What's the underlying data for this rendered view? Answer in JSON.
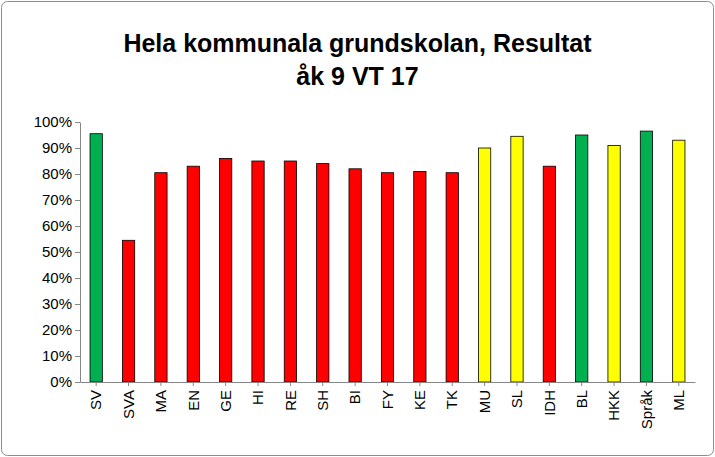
{
  "chart_data": {
    "type": "bar",
    "title": "Hela kommunala grundskolan, Resultat\nåk 9 VT 17",
    "categories": [
      "SV",
      "SVA",
      "MA",
      "EN",
      "GE",
      "HI",
      "RE",
      "SH",
      "BI",
      "FY",
      "KE",
      "TK",
      "MU",
      "SL",
      "IDH",
      "BL",
      "HKK",
      "Språk",
      "ML"
    ],
    "values": [
      95.5,
      54.5,
      80.5,
      83,
      86,
      85,
      85,
      84,
      82,
      80.5,
      81,
      80.5,
      90,
      94.5,
      83,
      95,
      91,
      96.5,
      93
    ],
    "colors": [
      "#00b050",
      "#ff0000",
      "#ff0000",
      "#ff0000",
      "#ff0000",
      "#ff0000",
      "#ff0000",
      "#ff0000",
      "#ff0000",
      "#ff0000",
      "#ff0000",
      "#ff0000",
      "#ffff00",
      "#ffff00",
      "#ff0000",
      "#00b050",
      "#ffff00",
      "#00b050",
      "#ffff00"
    ],
    "ylim": [
      0,
      100
    ],
    "yticks": [
      {
        "value": 0,
        "label": "0%"
      },
      {
        "value": 10,
        "label": "10%"
      },
      {
        "value": 20,
        "label": "20%"
      },
      {
        "value": 30,
        "label": "30%"
      },
      {
        "value": 40,
        "label": "40%"
      },
      {
        "value": 50,
        "label": "50%"
      },
      {
        "value": 60,
        "label": "60%"
      },
      {
        "value": 70,
        "label": "70%"
      },
      {
        "value": 80,
        "label": "80%"
      },
      {
        "value": 90,
        "label": "90%"
      },
      {
        "value": 100,
        "label": "100%"
      }
    ],
    "grid": false
  }
}
